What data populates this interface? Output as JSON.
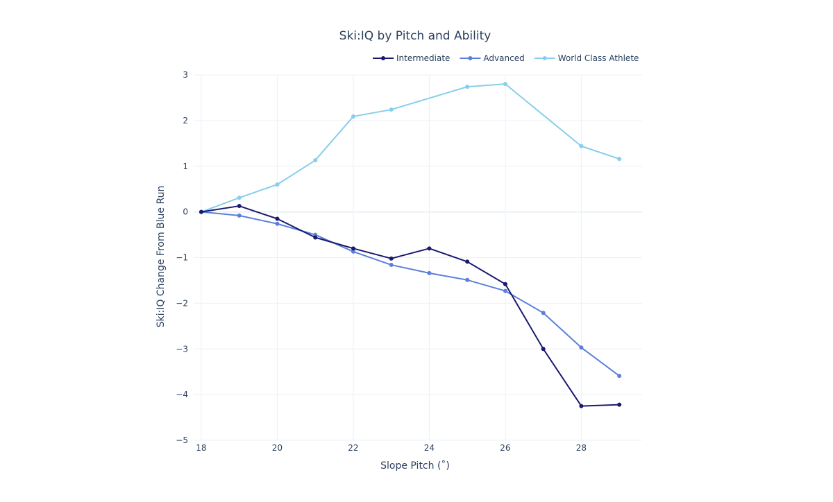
{
  "chart_data": {
    "type": "line",
    "title": "Ski:IQ by Pitch and Ability",
    "xlabel": "Slope Pitch (˚)",
    "ylabel": "Ski:IQ Change From Blue Run",
    "xlim": [
      17.8,
      29.6
    ],
    "ylim": [
      -5,
      3
    ],
    "x_ticks": [
      18,
      20,
      22,
      24,
      26,
      28
    ],
    "y_ticks": [
      3,
      2,
      1,
      0,
      -1,
      -2,
      -3,
      -4,
      -5
    ],
    "y_tick_labels": [
      "3",
      "2",
      "1",
      "0",
      "−1",
      "−2",
      "−3",
      "−4",
      "−5"
    ],
    "grid": true,
    "legend_position": "top-right",
    "x": [
      18,
      19,
      20,
      21,
      22,
      23,
      24,
      25,
      26,
      27,
      28,
      29
    ],
    "series": [
      {
        "name": "Intermediate",
        "color": "#191970",
        "values": [
          0,
          0.13,
          -0.15,
          -0.56,
          -0.8,
          -1.02,
          -0.8,
          -1.09,
          -1.58,
          -3.0,
          -4.25,
          -4.22
        ]
      },
      {
        "name": "Advanced",
        "color": "#5b7fdb",
        "values": [
          0,
          -0.08,
          -0.26,
          -0.5,
          -0.87,
          -1.16,
          -1.34,
          -1.49,
          -1.73,
          -2.21,
          -2.97,
          -3.59
        ]
      },
      {
        "name": "World Class Athlete",
        "color": "#87ceeb",
        "values": [
          0,
          0.31,
          0.6,
          1.13,
          2.09,
          2.24,
          null,
          2.74,
          2.8,
          null,
          1.44,
          1.16
        ]
      }
    ]
  }
}
